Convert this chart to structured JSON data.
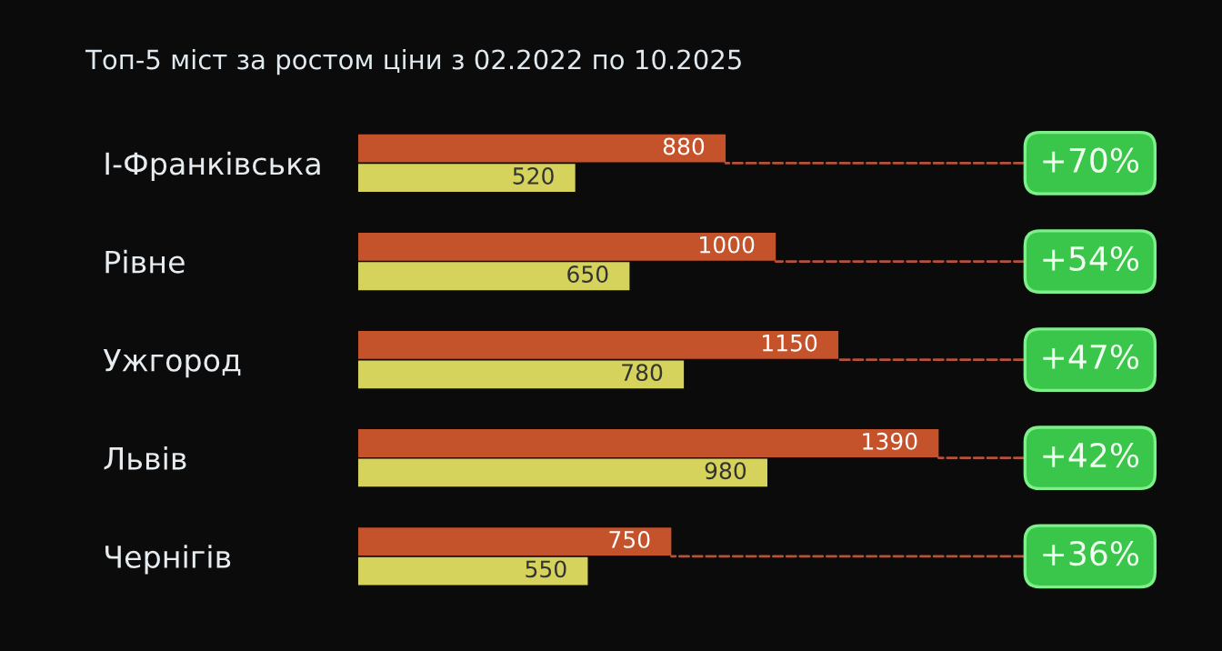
{
  "chart_data": {
    "type": "bar",
    "orientation": "horizontal",
    "title": "Топ-5 міст за ростом ціни з 02.2022 по 10.2025",
    "categories": [
      "І-Франківська",
      "Рівне",
      "Ужгород",
      "Львів",
      "Чернігів"
    ],
    "series": [
      {
        "color": "#c4532b",
        "values": [
          880,
          1000,
          1150,
          1390,
          750
        ]
      },
      {
        "color": "#d6d35c",
        "values": [
          520,
          650,
          780,
          980,
          550
        ]
      }
    ],
    "data_labels": true,
    "grid": false,
    "annotations": [
      "+70%",
      "+54%",
      "+47%",
      "+42%",
      "+36%"
    ]
  }
}
